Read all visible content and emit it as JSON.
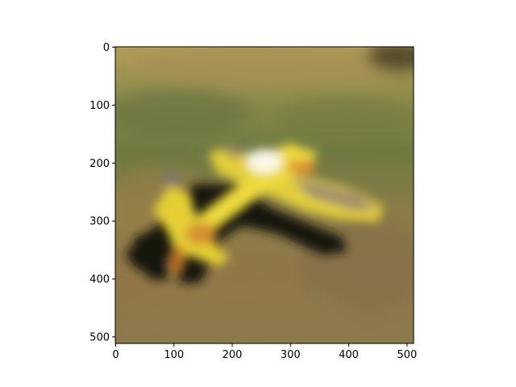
{
  "figure": {
    "x_axis": {
      "ticks": [
        0,
        100,
        200,
        300,
        400,
        500
      ],
      "range": [
        0,
        512
      ]
    },
    "y_axis": {
      "ticks": [
        0,
        100,
        200,
        300,
        400,
        500
      ],
      "range": [
        0,
        512
      ],
      "inverted": true
    }
  },
  "image": {
    "description_tags": [
      "blurred",
      "toy-airplane",
      "grass-field"
    ],
    "colors": {
      "grass_top": "#a89452",
      "grass_mid": "#6f7a40",
      "grass_low": "#8a7443",
      "plane_yellow": "#e7d33a",
      "plane_orange": "#d8882e",
      "shadow": "#141207"
    }
  }
}
